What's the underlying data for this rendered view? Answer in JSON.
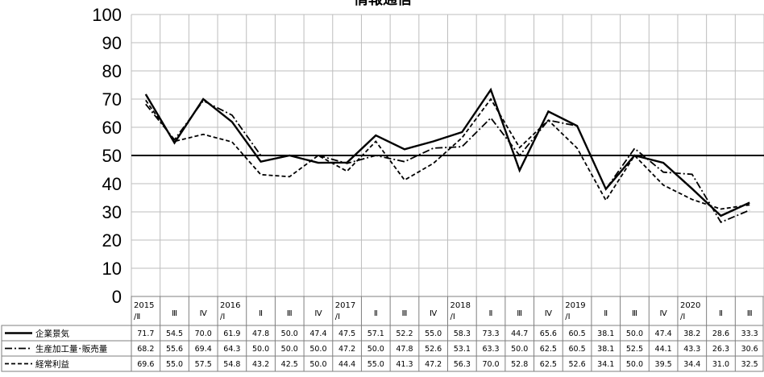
{
  "chart_data": {
    "type": "line",
    "title": "情報通信",
    "ylim": [
      0,
      100
    ],
    "yticks": [
      0,
      10,
      20,
      30,
      40,
      50,
      60,
      70,
      80,
      90,
      100
    ],
    "reference_line": 50,
    "grid": true,
    "legend": "table-bottom",
    "categories": [
      [
        "2015",
        "/Ⅱ"
      ],
      [
        "Ⅲ"
      ],
      [
        "Ⅳ"
      ],
      [
        "2016",
        "/Ⅰ"
      ],
      [
        "Ⅱ"
      ],
      [
        "Ⅲ"
      ],
      [
        "Ⅳ"
      ],
      [
        "2017",
        "/Ⅰ"
      ],
      [
        "Ⅱ"
      ],
      [
        "Ⅲ"
      ],
      [
        "Ⅳ"
      ],
      [
        "2018",
        "/Ⅰ"
      ],
      [
        "Ⅱ"
      ],
      [
        "Ⅲ"
      ],
      [
        "Ⅳ"
      ],
      [
        "2019",
        "/Ⅰ"
      ],
      [
        "Ⅱ"
      ],
      [
        "Ⅲ"
      ],
      [
        "Ⅳ"
      ],
      [
        "2020",
        "/Ⅰ"
      ],
      [
        "Ⅱ"
      ],
      [
        "Ⅲ"
      ]
    ],
    "series": [
      {
        "name": "企業景気",
        "style": "solid",
        "values": [
          71.7,
          54.5,
          70.0,
          61.9,
          47.8,
          50.0,
          47.4,
          47.5,
          57.1,
          52.2,
          55.0,
          58.3,
          73.3,
          44.7,
          65.6,
          60.5,
          38.1,
          50.0,
          47.4,
          38.2,
          28.6,
          33.3
        ]
      },
      {
        "name": "生産加工量･販売量",
        "style": "dashdot",
        "values": [
          68.2,
          55.6,
          69.4,
          64.3,
          50.0,
          50.0,
          50.0,
          47.2,
          50.0,
          47.8,
          52.6,
          53.1,
          63.3,
          50.0,
          62.5,
          60.5,
          38.1,
          52.5,
          44.1,
          43.3,
          26.3,
          30.6
        ]
      },
      {
        "name": "経常利益",
        "style": "dashed",
        "values": [
          69.6,
          55.0,
          57.5,
          54.8,
          43.2,
          42.5,
          50.0,
          44.4,
          55.0,
          41.3,
          47.2,
          56.3,
          70.0,
          52.8,
          62.5,
          52.6,
          34.1,
          50.0,
          39.5,
          34.4,
          31.0,
          32.5
        ]
      }
    ]
  }
}
